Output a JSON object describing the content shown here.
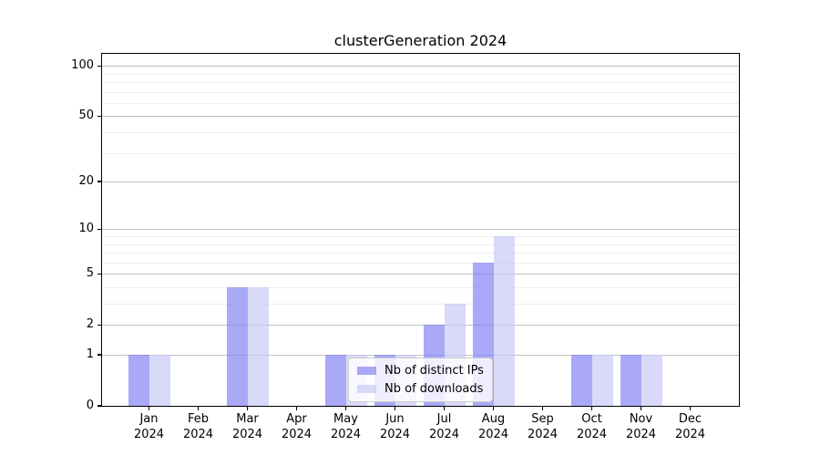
{
  "title": "clusterGeneration 2024",
  "chart_data": {
    "type": "bar",
    "title": "clusterGeneration 2024",
    "categories": [
      "Jan",
      "Feb",
      "Mar",
      "Apr",
      "May",
      "Jun",
      "Jul",
      "Aug",
      "Sep",
      "Oct",
      "Nov",
      "Dec"
    ],
    "x_tick_year_line": "2024",
    "series": [
      {
        "name": "Nb of distinct IPs",
        "color": "rgba(128,128,243,0.68)",
        "values": [
          1,
          0,
          4,
          0,
          1,
          1,
          2,
          6,
          0,
          1,
          1,
          0
        ]
      },
      {
        "name": "Nb of downloads",
        "color": "rgba(199,199,248,0.68)",
        "values": [
          1,
          0,
          4,
          0,
          1,
          1,
          3,
          9,
          0,
          1,
          1,
          0
        ]
      }
    ],
    "xlabel": "",
    "ylabel": "",
    "yscale": "log1p",
    "ylim": [
      0,
      118
    ],
    "y_ticks": [
      0,
      1,
      2,
      5,
      10,
      20,
      50,
      100
    ],
    "y_minor_gridlines": [
      3,
      4,
      6,
      7,
      8,
      9,
      30,
      40,
      60,
      70,
      80,
      90
    ],
    "grid": true,
    "legend_position": "lower center inside plot"
  },
  "colors": {
    "major_grid": "#c2c2c2",
    "minor_grid": "#ededed",
    "axis": "#000000",
    "background": "#ffffff"
  }
}
